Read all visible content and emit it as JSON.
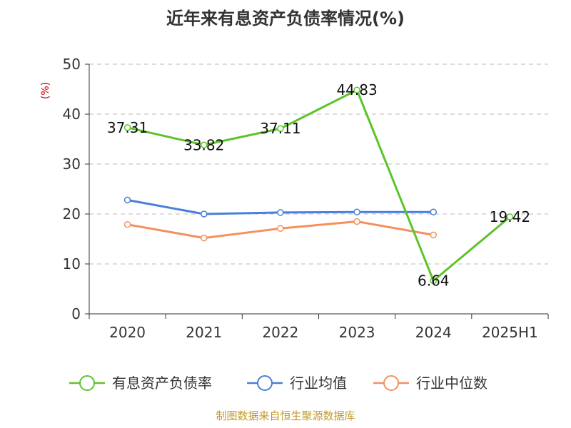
{
  "chart_data": {
    "type": "line",
    "title": "近年来有息资产负债率情况(%)",
    "ylabel": "(%)",
    "categories": [
      "2020",
      "2021",
      "2022",
      "2023",
      "2024",
      "2025H1"
    ],
    "ylim": [
      0,
      50
    ],
    "yticks": [
      "0",
      "10",
      "20",
      "30",
      "40",
      "50"
    ],
    "grid": true,
    "legend_position": "bottom",
    "series": [
      {
        "name": "有息资产负债率",
        "color": "#5cc42b",
        "values": [
          37.31,
          33.82,
          37.11,
          44.83,
          6.64,
          19.42
        ],
        "labels": [
          "37.31",
          "33.82",
          "37.11",
          "44.83",
          "6.64",
          "19.42"
        ]
      },
      {
        "name": "行业均值",
        "color": "#4a7fdc",
        "values": [
          22.8,
          20.0,
          20.3,
          20.4,
          20.4,
          null
        ]
      },
      {
        "name": "行业中位数",
        "color": "#f5905e",
        "values": [
          17.9,
          15.2,
          17.1,
          18.5,
          15.8,
          null
        ]
      }
    ],
    "source": "制图数据来自恒生聚源数据库"
  }
}
